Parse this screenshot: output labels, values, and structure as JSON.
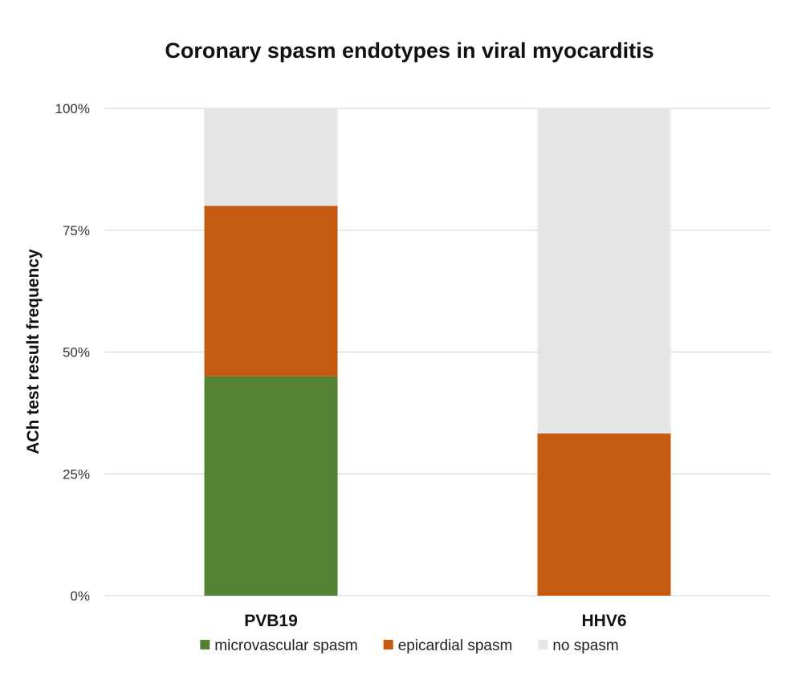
{
  "chart_data": {
    "type": "bar",
    "stacked": true,
    "title": "Coronary spasm endotypes in viral myocarditis",
    "ylabel": "ACh test result frequency",
    "xlabel": "",
    "categories": [
      "PVB19",
      "HHV6"
    ],
    "ylim": [
      0,
      100
    ],
    "yticks": [
      0,
      25,
      50,
      75,
      100
    ],
    "ytick_labels": [
      "0%",
      "25%",
      "50%",
      "75%",
      "100%"
    ],
    "grid": true,
    "legend_position": "bottom",
    "series": [
      {
        "name": "microvascular spasm",
        "color": "#548235",
        "values": [
          45,
          0
        ]
      },
      {
        "name": "epicardial spasm",
        "color": "#C55A11",
        "values": [
          35,
          33.3
        ]
      },
      {
        "name": "no spasm",
        "color": "#E7E6E6",
        "values": [
          20,
          66.7
        ]
      }
    ]
  }
}
